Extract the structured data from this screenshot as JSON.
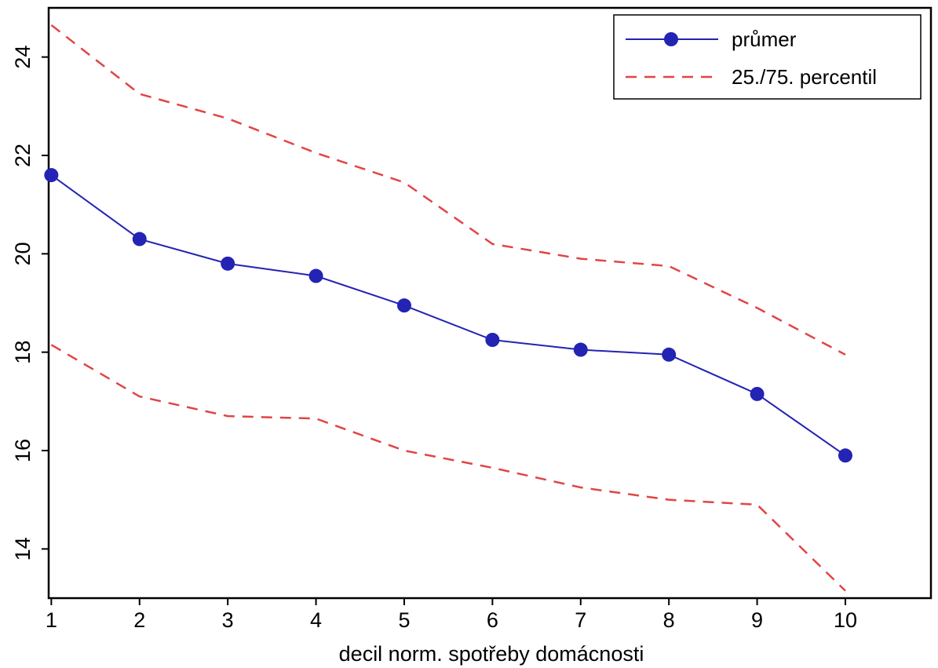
{
  "chart_data": {
    "type": "line",
    "xlabel": "decil norm. spotřeby domácnosti",
    "ylabel": "",
    "x": [
      1,
      2,
      3,
      4,
      5,
      6,
      7,
      8,
      9,
      10
    ],
    "x_tick_labels": [
      "1",
      "2",
      "3",
      "4",
      "5",
      "6",
      "7",
      "8",
      "9",
      "10"
    ],
    "y_ticks": [
      14,
      16,
      18,
      20,
      22,
      24
    ],
    "y_tick_labels": [
      "14",
      "16",
      "18",
      "20",
      "22",
      "24"
    ],
    "xlim": [
      0.97,
      10.97
    ],
    "ylim": [
      13.0,
      25.0
    ],
    "grid": false,
    "legend_position": "top-right",
    "series": [
      {
        "name": "průmer",
        "style": "solid-markers",
        "color": "#2323b4",
        "values": [
          21.6,
          20.3,
          19.8,
          19.55,
          18.95,
          18.25,
          18.05,
          17.95,
          17.15,
          15.9
        ]
      },
      {
        "name": "25./75. percentil",
        "style": "dashed",
        "color": "#e04545",
        "values": [
          24.65,
          23.25,
          22.75,
          22.05,
          21.45,
          20.2,
          19.9,
          19.75,
          18.9,
          17.95
        ]
      },
      {
        "name": "",
        "legend_group": "25./75. percentil",
        "style": "dashed",
        "color": "#e04545",
        "values": [
          18.15,
          17.1,
          16.7,
          16.65,
          16.0,
          15.65,
          15.25,
          15.0,
          14.9,
          13.15
        ]
      }
    ]
  }
}
